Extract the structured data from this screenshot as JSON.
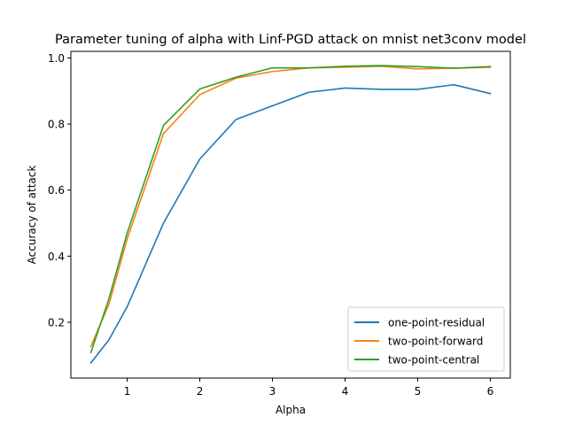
{
  "chart_data": {
    "type": "line",
    "title": "Parameter tuning  of alpha with Linf-PGD attack on mnist net3conv model",
    "xlabel": "Alpha",
    "ylabel": "Accuracy of attack",
    "xlim": [
      0.225,
      6.275
    ],
    "ylim": [
      0.031,
      1.02
    ],
    "xticks": [
      1,
      2,
      3,
      4,
      5,
      6
    ],
    "yticks": [
      0.2,
      0.4,
      0.6,
      0.8,
      1.0
    ],
    "ytick_labels": [
      "0.2",
      "0.4",
      "0.6",
      "0.8",
      "1.0"
    ],
    "grid": false,
    "legend_position": "lower-right",
    "x": [
      0.5,
      0.75,
      1,
      1.5,
      2,
      2.5,
      3,
      3.5,
      4,
      4.5,
      5,
      5.5,
      6
    ],
    "series": [
      {
        "name": "one-point-residual",
        "color": "#1f77b4",
        "values": [
          0.077,
          0.147,
          0.247,
          0.5,
          0.694,
          0.814,
          0.855,
          0.896,
          0.909,
          0.905,
          0.905,
          0.919,
          0.892
        ]
      },
      {
        "name": "two-point-forward",
        "color": "#ff7f0e",
        "values": [
          0.127,
          0.255,
          0.452,
          0.771,
          0.889,
          0.939,
          0.959,
          0.97,
          0.972,
          0.975,
          0.967,
          0.969,
          0.972
        ]
      },
      {
        "name": "two-point-central",
        "color": "#2ca02c",
        "values": [
          0.108,
          0.272,
          0.47,
          0.796,
          0.906,
          0.942,
          0.97,
          0.97,
          0.975,
          0.977,
          0.974,
          0.969,
          0.974
        ]
      }
    ]
  }
}
